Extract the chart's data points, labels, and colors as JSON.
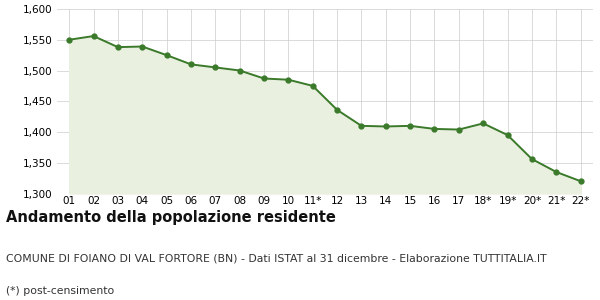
{
  "x_labels": [
    "01",
    "02",
    "03",
    "04",
    "05",
    "06",
    "07",
    "08",
    "09",
    "10",
    "11*",
    "12",
    "13",
    "14",
    "15",
    "16",
    "17",
    "18*",
    "19*",
    "20*",
    "21*",
    "22*"
  ],
  "y_values": [
    1550,
    1556,
    1538,
    1539,
    1525,
    1510,
    1505,
    1500,
    1487,
    1485,
    1475,
    1436,
    1410,
    1409,
    1410,
    1405,
    1404,
    1414,
    1395,
    1356,
    1335,
    1320
  ],
  "line_color": "#3a7a2a",
  "fill_color": "#eaf0e0",
  "marker_color": "#3a7a2a",
  "bg_color": "#ffffff",
  "grid_color": "#cccccc",
  "ylim": [
    1300,
    1600
  ],
  "yticks": [
    1300,
    1350,
    1400,
    1450,
    1500,
    1550,
    1600
  ],
  "title": "Andamento della popolazione residente",
  "subtitle": "COMUNE DI FOIANO DI VAL FORTORE (BN) - Dati ISTAT al 31 dicembre - Elaborazione TUTTITALIA.IT",
  "footnote": "(*) post-censimento",
  "title_fontsize": 10.5,
  "subtitle_fontsize": 7.8,
  "footnote_fontsize": 7.8,
  "tick_fontsize": 7.5
}
